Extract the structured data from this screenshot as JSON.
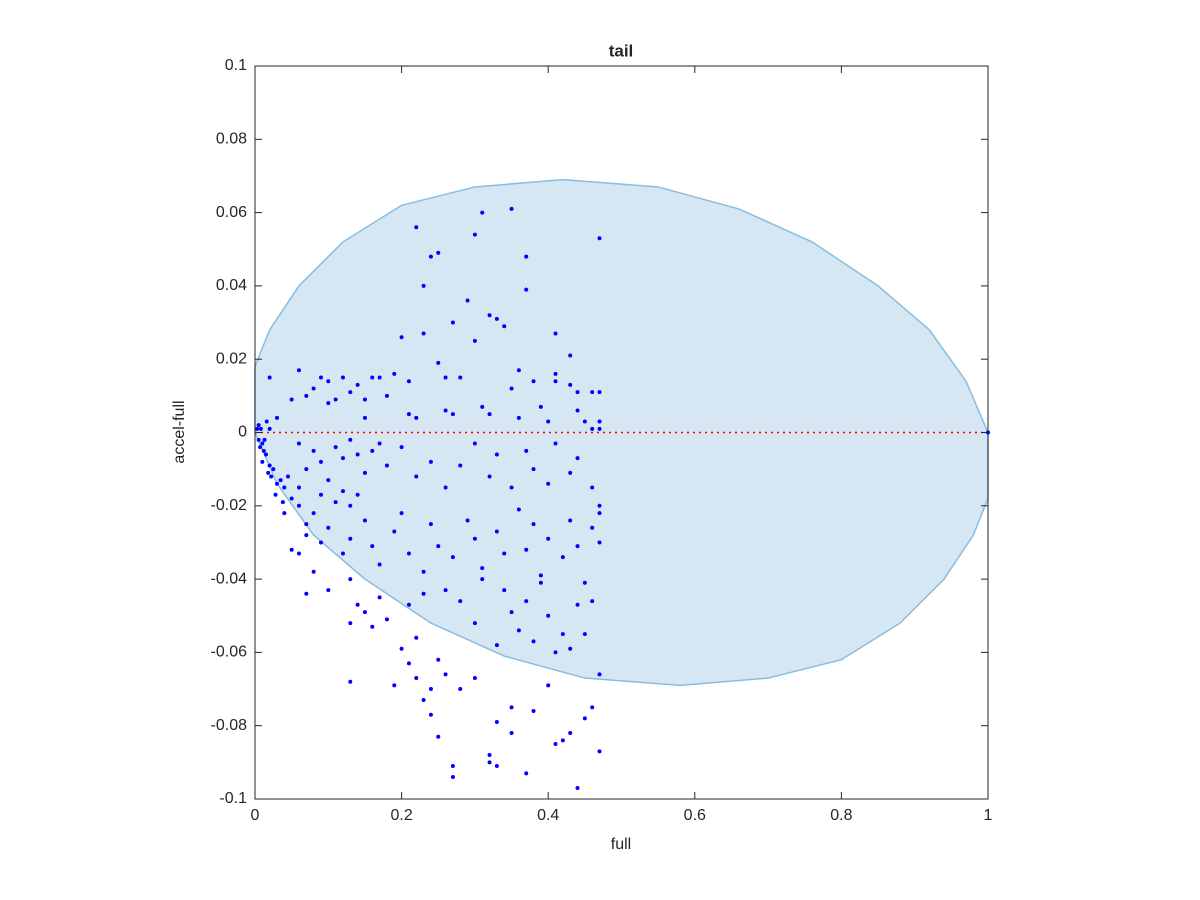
{
  "chart_data": {
    "type": "scatter",
    "title": "tail",
    "x_label": "full",
    "y_label": "accel-full",
    "xlim": [
      0,
      1
    ],
    "ylim": [
      -0.1,
      0.1
    ],
    "xticks": [
      0,
      0.2,
      0.4,
      0.6,
      0.8,
      1
    ],
    "yticks": [
      -0.1,
      -0.08,
      -0.06,
      -0.04,
      -0.02,
      0,
      0.02,
      0.04,
      0.06,
      0.08,
      0.1
    ],
    "region": {
      "color": "#d6e7f3",
      "edge_color": "#88bde0",
      "x": [
        0,
        0.02,
        0.06,
        0.12,
        0.2,
        0.3,
        0.42,
        0.55,
        0.66,
        0.76,
        0.85,
        0.92,
        0.97,
        1,
        1,
        0.98,
        0.94,
        0.88,
        0.8,
        0.7,
        0.58,
        0.45,
        0.34,
        0.24,
        0.15,
        0.08,
        0.03,
        0
      ],
      "y": [
        0.018,
        0.028,
        0.04,
        0.052,
        0.062,
        0.067,
        0.069,
        0.067,
        0.061,
        0.052,
        0.04,
        0.028,
        0.014,
        0,
        -0.018,
        -0.028,
        -0.04,
        -0.052,
        -0.062,
        -0.067,
        -0.069,
        -0.067,
        -0.061,
        -0.052,
        -0.04,
        -0.028,
        -0.014,
        0
      ]
    },
    "reference_line": {
      "y": 0,
      "color": "#ff0000"
    },
    "series": [
      {
        "color": "#0000ff",
        "x": [
          0.22,
          0.31,
          0.35,
          0.3,
          0.47,
          0.24,
          0.25,
          0.37,
          0.23,
          0.37,
          0.29,
          0.32,
          0.33,
          0.34,
          0.27,
          0.23,
          0.41,
          0.2,
          0.3,
          0.43,
          0.41,
          0.19,
          0.21,
          0.25,
          0.26,
          0.28,
          0.36,
          0.35,
          0.38,
          0.41,
          0.43,
          0.44,
          0.46,
          0.47,
          0.06,
          0.09,
          0.1,
          0.12,
          0.14,
          0.16,
          0.17,
          0.13,
          0.08,
          0.07,
          0.05,
          0.11,
          0.15,
          0.18,
          0.1,
          0.03,
          0.02,
          0.26,
          0.27,
          0.31,
          0.32,
          0.36,
          0.44,
          0.39,
          0.47,
          0.47,
          0.46,
          0.15,
          0.22,
          0.21,
          0.4,
          0.45,
          0.005,
          0.005,
          0.008,
          0.01,
          0.012,
          0.01,
          0.015,
          0.02,
          0.018,
          0.022,
          0.025,
          0.013,
          0.003,
          0.007,
          0.016,
          0.02,
          0.03,
          0.035,
          0.04,
          0.05,
          0.06,
          0.045,
          0.028,
          0.038,
          0.04,
          0.06,
          0.07,
          0.08,
          0.09,
          0.1,
          0.11,
          0.12,
          0.13,
          0.14,
          0.15,
          0.08,
          0.07,
          0.06,
          0.09,
          0.11,
          0.12,
          0.13,
          0.14,
          0.16,
          0.17,
          0.18,
          0.2,
          0.22,
          0.24,
          0.26,
          0.28,
          0.3,
          0.32,
          0.33,
          0.35,
          0.37,
          0.38,
          0.4,
          0.41,
          0.43,
          0.44,
          0.46,
          0.47,
          0.07,
          0.09,
          0.06,
          0.05,
          0.1,
          0.12,
          0.13,
          0.15,
          0.16,
          0.17,
          0.19,
          0.2,
          0.21,
          0.23,
          0.24,
          0.25,
          0.27,
          0.29,
          0.3,
          0.31,
          0.33,
          0.34,
          0.36,
          0.37,
          0.38,
          0.39,
          0.4,
          0.42,
          0.43,
          0.44,
          0.45,
          0.46,
          0.47,
          0.47,
          0.08,
          0.1,
          0.07,
          0.13,
          0.14,
          0.15,
          0.17,
          0.18,
          0.21,
          0.23,
          0.26,
          0.28,
          0.31,
          0.34,
          0.35,
          0.37,
          0.39,
          0.4,
          0.42,
          0.44,
          0.46,
          0.13,
          0.16,
          0.2,
          0.22,
          0.25,
          0.3,
          0.33,
          0.36,
          0.38,
          0.41,
          0.43,
          0.45,
          0.47,
          0.13,
          0.19,
          0.21,
          0.22,
          0.24,
          0.26,
          0.28,
          0.3,
          0.35,
          0.4,
          0.46,
          0.23,
          0.24,
          0.25,
          0.33,
          0.35,
          0.38,
          0.42,
          0.43,
          0.45,
          0.47,
          0.27,
          0.27,
          0.32,
          0.32,
          0.33,
          0.37,
          0.41,
          0.44,
          1
        ],
        "y": [
          0.056,
          0.06,
          0.061,
          0.054,
          0.053,
          0.048,
          0.049,
          0.048,
          0.04,
          0.039,
          0.036,
          0.032,
          0.031,
          0.029,
          0.03,
          0.027,
          0.027,
          0.026,
          0.025,
          0.021,
          0.016,
          0.016,
          0.014,
          0.019,
          0.015,
          0.015,
          0.017,
          0.012,
          0.014,
          0.014,
          0.013,
          0.011,
          0.011,
          0.011,
          0.017,
          0.015,
          0.014,
          0.015,
          0.013,
          0.015,
          0.015,
          0.011,
          0.012,
          0.01,
          0.009,
          0.009,
          0.009,
          0.01,
          0.008,
          0.004,
          0.015,
          0.006,
          0.005,
          0.007,
          0.005,
          0.004,
          0.006,
          0.007,
          0.003,
          0.001,
          0.001,
          0.004,
          0.004,
          0.005,
          0.003,
          0.003,
          0.002,
          -0.002,
          0.001,
          -0.003,
          -0.005,
          -0.008,
          -0.006,
          -0.009,
          -0.011,
          -0.012,
          -0.01,
          -0.002,
          0.001,
          -0.004,
          0.003,
          0.001,
          -0.014,
          -0.013,
          -0.015,
          -0.018,
          -0.015,
          -0.012,
          -0.017,
          -0.019,
          -0.022,
          -0.02,
          -0.025,
          -0.022,
          -0.017,
          -0.013,
          -0.019,
          -0.016,
          -0.02,
          -0.017,
          -0.011,
          -0.005,
          -0.01,
          -0.003,
          -0.008,
          -0.004,
          -0.007,
          -0.002,
          -0.006,
          -0.005,
          -0.003,
          -0.009,
          -0.004,
          -0.012,
          -0.008,
          -0.015,
          -0.009,
          -0.003,
          -0.012,
          -0.006,
          -0.015,
          -0.005,
          -0.01,
          -0.014,
          -0.003,
          -0.011,
          -0.007,
          -0.015,
          -0.02,
          -0.028,
          -0.03,
          -0.033,
          -0.032,
          -0.026,
          -0.033,
          -0.029,
          -0.024,
          -0.031,
          -0.036,
          -0.027,
          -0.022,
          -0.033,
          -0.038,
          -0.025,
          -0.031,
          -0.034,
          -0.024,
          -0.029,
          -0.037,
          -0.027,
          -0.033,
          -0.021,
          -0.032,
          -0.025,
          -0.039,
          -0.029,
          -0.034,
          -0.024,
          -0.031,
          -0.041,
          -0.026,
          -0.022,
          -0.03,
          -0.038,
          -0.043,
          -0.044,
          -0.04,
          -0.047,
          -0.049,
          -0.045,
          -0.051,
          -0.047,
          -0.044,
          -0.043,
          -0.046,
          -0.04,
          -0.043,
          -0.049,
          -0.046,
          -0.041,
          -0.05,
          -0.055,
          -0.047,
          -0.046,
          -0.052,
          -0.053,
          -0.059,
          -0.056,
          -0.062,
          -0.052,
          -0.058,
          -0.054,
          -0.057,
          -0.06,
          -0.059,
          -0.055,
          -0.066,
          -0.068,
          -0.069,
          -0.063,
          -0.067,
          -0.07,
          -0.066,
          -0.07,
          -0.067,
          -0.075,
          -0.069,
          -0.075,
          -0.073,
          -0.077,
          -0.083,
          -0.079,
          -0.082,
          -0.076,
          -0.084,
          -0.082,
          -0.078,
          -0.087,
          -0.091,
          -0.094,
          -0.088,
          -0.09,
          -0.091,
          -0.093,
          -0.085,
          -0.097,
          0
        ]
      }
    ]
  }
}
